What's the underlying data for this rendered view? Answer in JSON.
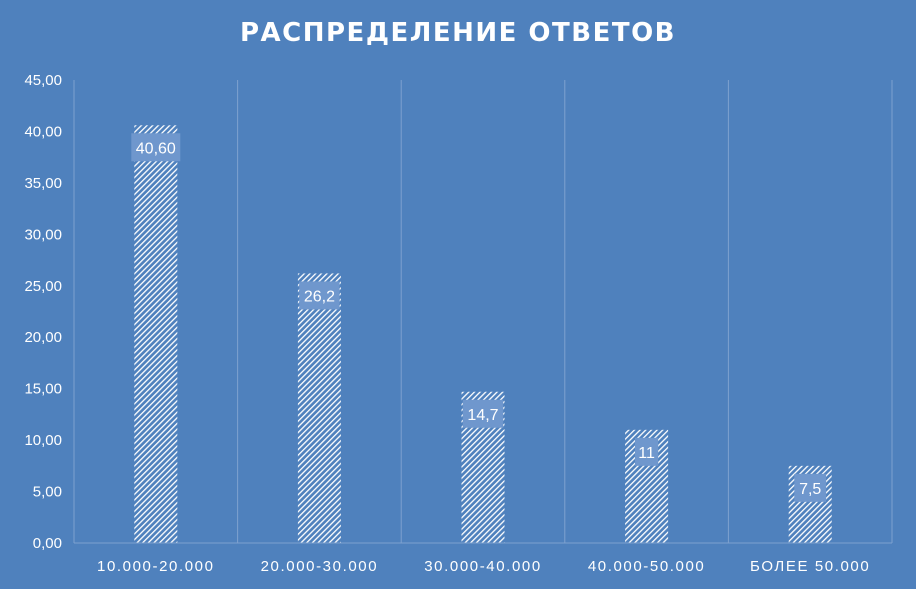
{
  "chart_data": {
    "type": "bar",
    "title": "РАСПРЕДЕЛЕНИЕ ОТВЕТОВ",
    "xlabel": "",
    "ylabel": "",
    "categories": [
      "10.000-20.000",
      "20.000-30.000",
      "30.000-40.000",
      "40.000-50.000",
      "БОЛЕЕ 50.000"
    ],
    "values": [
      40.6,
      26.2,
      14.7,
      11,
      7.5
    ],
    "data_labels": [
      "40,60",
      "26,2",
      "14,7",
      "11",
      "7,5"
    ],
    "ylim": [
      0,
      45
    ],
    "yticks": [
      "0,00",
      "5,00",
      "10,00",
      "15,00",
      "20,00",
      "25,00",
      "30,00",
      "35,00",
      "40,00",
      "45,00"
    ],
    "grid": "vertical category separators",
    "legend": "none",
    "bar_fill": "white hatched pattern"
  },
  "colors": {
    "background": "#4f81bd",
    "axis_text": "#ffffff",
    "grid": "#7ea1cf",
    "label_box": "#6f97cd",
    "hatch": "#ffffff"
  }
}
